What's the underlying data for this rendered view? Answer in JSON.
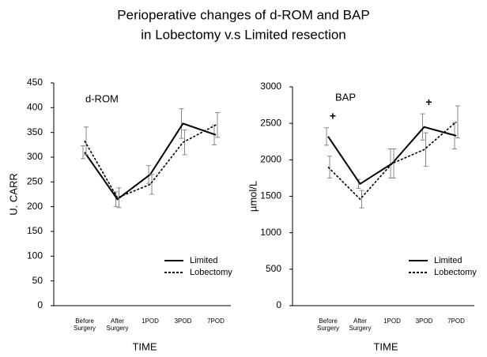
{
  "title": [
    "Perioperative changes of d-ROM and BAP",
    "in Lobectomy v.s Limited resection"
  ],
  "chart_data": [
    {
      "type": "line",
      "title": "d-ROM",
      "x_label": "TIME",
      "y_label": "U. CARR",
      "categories": [
        "Before Surgery",
        "After Surgery",
        "1POD",
        "3POD",
        "7POD"
      ],
      "ylim": [
        0,
        450
      ],
      "yticks": [
        0,
        50,
        100,
        150,
        200,
        250,
        300,
        350,
        400,
        450
      ],
      "legend": "lower right",
      "series": [
        {
          "name": "Limited",
          "color": "#000000",
          "dash": "solid",
          "values": [
            310,
            215,
            265,
            368,
            345
          ],
          "errors": [
            13,
            15,
            18,
            30,
            20
          ]
        },
        {
          "name": "Lobectomy",
          "color": "#000000",
          "dash": "dotted",
          "values": [
            333,
            218,
            245,
            330,
            365
          ],
          "errors": [
            28,
            20,
            20,
            25,
            25
          ]
        }
      ]
    },
    {
      "type": "line",
      "title": "BAP",
      "x_label": "TIME",
      "y_label": "µmol/L",
      "categories": [
        "Before Surgery",
        "After Surgery",
        "1POD",
        "3POD",
        "7POD"
      ],
      "ylim": [
        0,
        3000
      ],
      "yticks": [
        0,
        500,
        1000,
        1500,
        2000,
        2500,
        3000
      ],
      "legend": "lower right",
      "annotations": [
        {
          "text": "+",
          "x": "Before Surgery"
        },
        {
          "text": "+",
          "x": "3POD"
        }
      ],
      "series": [
        {
          "name": "Limited",
          "color": "#000000",
          "dash": "solid",
          "values": [
            2320,
            1670,
            1950,
            2450,
            2330
          ],
          "errors": [
            120,
            60,
            200,
            180,
            180
          ]
        },
        {
          "name": "Lobectomy",
          "color": "#000000",
          "dash": "dotted",
          "values": [
            1900,
            1460,
            1950,
            2140,
            2520
          ],
          "errors": [
            150,
            120,
            200,
            230,
            220
          ]
        }
      ]
    }
  ]
}
